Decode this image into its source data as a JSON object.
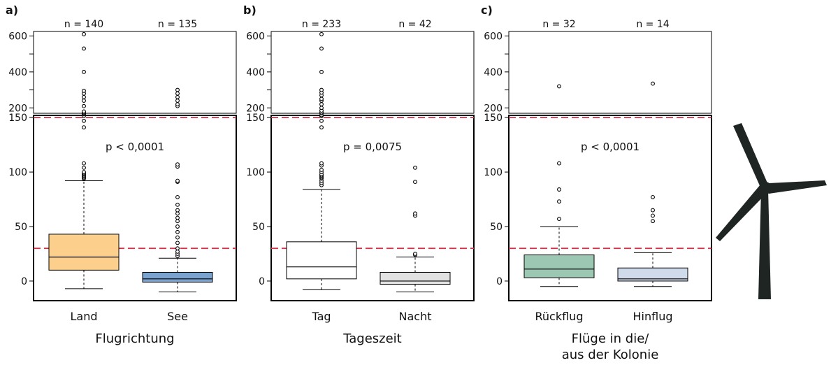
{
  "chart_data": {
    "type": "boxplot",
    "threshold_lines": [
      30,
      150
    ],
    "threshold_line_color": "#d6334a",
    "lower_axis": {
      "ylim": [
        -18,
        152
      ],
      "ticks": [
        0,
        50,
        100,
        150
      ]
    },
    "upper_axis": {
      "ylim": [
        170,
        625
      ],
      "ticks": [
        200,
        400,
        600
      ],
      "minor_ticks": [
        300,
        500
      ]
    },
    "panels": [
      {
        "letter": "a)",
        "xlabel": [
          "Flugrichtung"
        ],
        "p_label": "p < 0,0001",
        "groups": [
          {
            "category": "Land",
            "n_label": "n = 140",
            "color": "#fcd08c",
            "whisker_low": -7,
            "q1": 10,
            "median": 22,
            "q3": 43,
            "whisker_high": 92,
            "outliers": [
              94,
              95,
              96,
              97,
              98,
              99,
              100,
              104,
              108,
              141,
              147,
              155,
              165,
              170,
              175,
              180,
              210,
              240,
              260,
              280,
              295,
              400,
              530,
              610
            ]
          },
          {
            "category": "See",
            "n_label": "n = 135",
            "color": "#7aa3cf",
            "whisker_low": -10,
            "q1": -1,
            "median": 2,
            "q3": 8,
            "whisker_high": 21,
            "outliers": [
              23,
              25,
              27,
              30,
              35,
              40,
              45,
              50,
              55,
              58,
              62,
              65,
              70,
              77,
              91,
              92,
              105,
              107,
              210,
              220,
              240,
              260,
              280,
              300
            ]
          }
        ]
      },
      {
        "letter": "b)",
        "xlabel": [
          "Tageszeit"
        ],
        "p_label": "p = 0,0075",
        "groups": [
          {
            "category": "Tag",
            "n_label": "n = 233",
            "color": "#ffffff",
            "whisker_low": -8,
            "q1": 2,
            "median": 13,
            "q3": 36,
            "whisker_high": 84,
            "outliers": [
              88,
              90,
              92,
              94,
              95,
              96,
              97,
              98,
              100,
              102,
              106,
              108,
              141,
              147,
              155,
              160,
              170,
              175,
              185,
              200,
              220,
              240,
              250,
              270,
              285,
              300,
              400,
              530,
              610
            ]
          },
          {
            "category": "Nacht",
            "n_label": "n = 42",
            "color": "#e2e2e2",
            "whisker_low": -10,
            "q1": -3,
            "median": 0,
            "q3": 8,
            "whisker_high": 22,
            "outliers": [
              24,
              25,
              60,
              62,
              91,
              104
            ]
          }
        ]
      },
      {
        "letter": "c)",
        "xlabel": [
          "Flüge in die/",
          "aus der Kolonie"
        ],
        "p_label": "p < 0,0001",
        "groups": [
          {
            "category": "Rückflug",
            "n_label": "n = 32",
            "color": "#9cc7b2",
            "whisker_low": -5,
            "q1": 3,
            "median": 11,
            "q3": 24,
            "whisker_high": 50,
            "outliers": [
              57,
              73,
              84,
              108,
              320
            ]
          },
          {
            "category": "Hinflug",
            "n_label": "n = 14",
            "color": "#cfdaea",
            "whisker_low": -5,
            "q1": 0,
            "median": 2,
            "q3": 12,
            "whisker_high": 26,
            "outliers": [
              55,
              60,
              65,
              77,
              335
            ]
          }
        ]
      }
    ]
  },
  "decoration": {
    "icon": "wind-turbine-icon",
    "color": "#1e2523"
  }
}
